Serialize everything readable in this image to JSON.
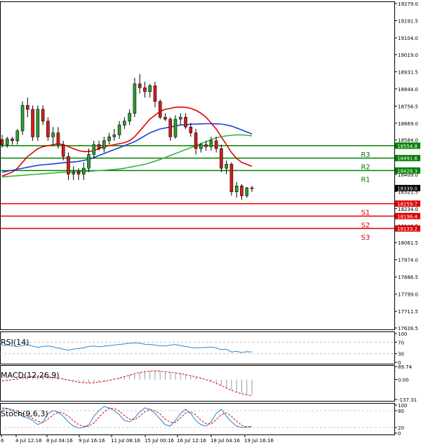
{
  "chart_data": {
    "type": "candlestick",
    "price_axis": {
      "ticks": [
        "19279.0",
        "19191.5",
        "19104.0",
        "19019.0",
        "18931.5",
        "18844.0",
        "18756.5",
        "18669.0",
        "18584.0",
        "18496.0",
        "18409.0",
        "18321.5",
        "18234.0",
        "18146.5",
        "18061.5",
        "17974.0",
        "17886.5",
        "17799.0",
        "17711.5",
        "17626.5"
      ],
      "range": [
        17626.5,
        19279.0
      ],
      "current_price": "18339.0"
    },
    "levels": [
      {
        "label": "R3",
        "value": 18554.8,
        "value_text": "18554.8",
        "color": "#008000"
      },
      {
        "label": "R2",
        "value": 18491.6,
        "value_text": "18491.6",
        "color": "#008000"
      },
      {
        "label": "R1",
        "value": 18428.3,
        "value_text": "18428.3",
        "color": "#008000"
      },
      {
        "label": "S1",
        "value": 18259.7,
        "value_text": "18259.7",
        "color": "#e00000"
      },
      {
        "label": "S2",
        "value": 18196.4,
        "value_text": "18196.4",
        "color": "#e00000"
      },
      {
        "label": "S3",
        "value": 18133.2,
        "value_text": "18133.2",
        "color": "#e00000"
      }
    ],
    "candles": [
      {
        "o": 18585,
        "h": 18610,
        "l": 18545,
        "c": 18560
      },
      {
        "o": 18560,
        "h": 18600,
        "l": 18545,
        "c": 18590
      },
      {
        "o": 18590,
        "h": 18600,
        "l": 18560,
        "c": 18580
      },
      {
        "o": 18580,
        "h": 18640,
        "l": 18560,
        "c": 18630
      },
      {
        "o": 18630,
        "h": 18780,
        "l": 18610,
        "c": 18760
      },
      {
        "o": 18760,
        "h": 18800,
        "l": 18700,
        "c": 18740
      },
      {
        "o": 18740,
        "h": 18760,
        "l": 18580,
        "c": 18600
      },
      {
        "o": 18600,
        "h": 18760,
        "l": 18580,
        "c": 18740
      },
      {
        "o": 18740,
        "h": 18760,
        "l": 18660,
        "c": 18680
      },
      {
        "o": 18680,
        "h": 18700,
        "l": 18580,
        "c": 18600
      },
      {
        "o": 18600,
        "h": 18650,
        "l": 18560,
        "c": 18620
      },
      {
        "o": 18620,
        "h": 18650,
        "l": 18540,
        "c": 18560
      },
      {
        "o": 18560,
        "h": 18580,
        "l": 18480,
        "c": 18500
      },
      {
        "o": 18500,
        "h": 18520,
        "l": 18380,
        "c": 18410
      },
      {
        "o": 18410,
        "h": 18450,
        "l": 18380,
        "c": 18420
      },
      {
        "o": 18420,
        "h": 18440,
        "l": 18380,
        "c": 18410
      },
      {
        "o": 18410,
        "h": 18470,
        "l": 18380,
        "c": 18440
      },
      {
        "o": 18440,
        "h": 18540,
        "l": 18420,
        "c": 18510
      },
      {
        "o": 18510,
        "h": 18580,
        "l": 18490,
        "c": 18560
      },
      {
        "o": 18560,
        "h": 18580,
        "l": 18530,
        "c": 18540
      },
      {
        "o": 18540,
        "h": 18600,
        "l": 18520,
        "c": 18580
      },
      {
        "o": 18580,
        "h": 18620,
        "l": 18560,
        "c": 18600
      },
      {
        "o": 18600,
        "h": 18640,
        "l": 18580,
        "c": 18610
      },
      {
        "o": 18610,
        "h": 18680,
        "l": 18590,
        "c": 18660
      },
      {
        "o": 18660,
        "h": 18700,
        "l": 18640,
        "c": 18680
      },
      {
        "o": 18680,
        "h": 18740,
        "l": 18660,
        "c": 18720
      },
      {
        "o": 18720,
        "h": 18900,
        "l": 18700,
        "c": 18870
      },
      {
        "o": 18870,
        "h": 18920,
        "l": 18820,
        "c": 18850
      },
      {
        "o": 18850,
        "h": 18880,
        "l": 18800,
        "c": 18830
      },
      {
        "o": 18830,
        "h": 18870,
        "l": 18800,
        "c": 18860
      },
      {
        "o": 18860,
        "h": 18880,
        "l": 18750,
        "c": 18780
      },
      {
        "o": 18780,
        "h": 18790,
        "l": 18690,
        "c": 18700
      },
      {
        "o": 18700,
        "h": 18720,
        "l": 18680,
        "c": 18690
      },
      {
        "o": 18690,
        "h": 18700,
        "l": 18580,
        "c": 18600
      },
      {
        "o": 18600,
        "h": 18710,
        "l": 18590,
        "c": 18690
      },
      {
        "o": 18690,
        "h": 18720,
        "l": 18660,
        "c": 18700
      },
      {
        "o": 18700,
        "h": 18720,
        "l": 18640,
        "c": 18650
      },
      {
        "o": 18650,
        "h": 18670,
        "l": 18600,
        "c": 18620
      },
      {
        "o": 18620,
        "h": 18640,
        "l": 18510,
        "c": 18540
      },
      {
        "o": 18540,
        "h": 18570,
        "l": 18520,
        "c": 18560
      },
      {
        "o": 18560,
        "h": 18580,
        "l": 18530,
        "c": 18550
      },
      {
        "o": 18550,
        "h": 18600,
        "l": 18530,
        "c": 18580
      },
      {
        "o": 18580,
        "h": 18600,
        "l": 18520,
        "c": 18540
      },
      {
        "o": 18540,
        "h": 18560,
        "l": 18420,
        "c": 18440
      },
      {
        "o": 18440,
        "h": 18480,
        "l": 18410,
        "c": 18460
      },
      {
        "o": 18460,
        "h": 18470,
        "l": 18300,
        "c": 18320
      },
      {
        "o": 18320,
        "h": 18370,
        "l": 18290,
        "c": 18350
      },
      {
        "o": 18350,
        "h": 18360,
        "l": 18280,
        "c": 18300
      },
      {
        "o": 18300,
        "h": 18345,
        "l": 18290,
        "c": 18340
      },
      {
        "o": 18340,
        "h": 18350,
        "l": 18320,
        "c": 18339
      }
    ],
    "moving_averages": [
      {
        "color": "#e00000",
        "values": [
          18400,
          18410,
          18420,
          18440,
          18470,
          18500,
          18520,
          18540,
          18550,
          18555,
          18560,
          18565,
          18560,
          18550,
          18540,
          18530,
          18525,
          18525,
          18530,
          18540,
          18550,
          18555,
          18560,
          18565,
          18570,
          18580,
          18600,
          18630,
          18660,
          18690,
          18710,
          18730,
          18740,
          18745,
          18750,
          18752,
          18750,
          18745,
          18735,
          18720,
          18700,
          18670,
          18640,
          18600,
          18560,
          18520,
          18490,
          18470,
          18460,
          18450
        ]
      },
      {
        "color": "#1a3fd6",
        "values": [
          18420,
          18425,
          18430,
          18435,
          18440,
          18445,
          18450,
          18455,
          18458,
          18460,
          18462,
          18465,
          18468,
          18470,
          18472,
          18475,
          18480,
          18485,
          18495,
          18505,
          18515,
          18525,
          18535,
          18545,
          18555,
          18565,
          18575,
          18590,
          18605,
          18620,
          18630,
          18640,
          18645,
          18650,
          18655,
          18660,
          18662,
          18664,
          18665,
          18666,
          18667,
          18667,
          18666,
          18665,
          18660,
          18655,
          18645,
          18635,
          18625,
          18615
        ]
      },
      {
        "color": "#3cb043",
        "values": [
          18395,
          18398,
          18400,
          18402,
          18404,
          18406,
          18408,
          18410,
          18412,
          18414,
          18416,
          18418,
          18420,
          18421,
          18422,
          18423,
          18424,
          18425,
          18426,
          18428,
          18430,
          18432,
          18434,
          18436,
          18440,
          18445,
          18450,
          18455,
          18460,
          18468,
          18476,
          18485,
          18495,
          18505,
          18515,
          18525,
          18535,
          18545,
          18555,
          18565,
          18575,
          18585,
          18595,
          18600,
          18605,
          18608,
          18610,
          18610,
          18608,
          18605
        ]
      }
    ],
    "x_axis_labels": [
      "6",
      "4 Jul 12:16",
      "8 Jul 04:16",
      "9 Jul 16:16",
      "11 Jul 08:16",
      "15 Jul 00:16",
      "16 Jul 12:16",
      "18 Jul 04:16",
      "19 Jul 16:16"
    ],
    "indicators": [
      {
        "name": "RSI(14)",
        "ticks": [
          "100",
          "70",
          "30",
          "0"
        ],
        "range": [
          0,
          100
        ],
        "color": "#1f8ad6",
        "values": [
          58,
          60,
          57,
          55,
          58,
          62,
          56,
          52,
          55,
          57,
          54,
          50,
          46,
          42,
          46,
          48,
          50,
          55,
          57,
          54,
          56,
          58,
          60,
          62,
          64,
          66,
          68,
          66,
          63,
          62,
          60,
          58,
          57,
          60,
          62,
          58,
          55,
          52,
          50,
          51,
          52,
          53,
          50,
          44,
          46,
          36,
          38,
          34,
          37,
          36
        ]
      },
      {
        "name": "MACD(12,26,9)",
        "ticks": [
          "89.74",
          "0.00",
          "-137.31"
        ],
        "range": [
          -137.31,
          89.74
        ],
        "color": "#e00000",
        "values": [
          -10,
          -6,
          -2,
          4,
          12,
          18,
          22,
          24,
          22,
          18,
          14,
          10,
          4,
          -4,
          -12,
          -18,
          -22,
          -24,
          -22,
          -18,
          -12,
          -6,
          2,
          10,
          20,
          30,
          40,
          48,
          54,
          58,
          60,
          58,
          54,
          50,
          46,
          40,
          34,
          26,
          18,
          10,
          0,
          -12,
          -26,
          -42,
          -58,
          -74,
          -88,
          -98,
          -106,
          -112
        ],
        "histogram": [
          -8,
          -4,
          0,
          5,
          14,
          20,
          24,
          26,
          24,
          20,
          16,
          12,
          6,
          -2,
          -10,
          -16,
          -20,
          -22,
          -20,
          -16,
          -10,
          -4,
          4,
          12,
          22,
          32,
          42,
          50,
          56,
          60,
          62,
          60,
          56,
          52,
          48,
          42,
          36,
          28,
          20,
          12,
          2,
          -10,
          -24,
          -40,
          -56,
          -72,
          -86,
          -96,
          -104,
          -110
        ]
      },
      {
        "name": "Stoch(9,6,3)",
        "ticks": [
          "100",
          "80",
          "20",
          "0"
        ],
        "range": [
          0,
          100
        ],
        "color": "#1f8ad6",
        "signal_color": "#e00000",
        "values": [
          90,
          88,
          80,
          70,
          60,
          55,
          45,
          30,
          40,
          70,
          80,
          75,
          60,
          40,
          25,
          18,
          20,
          30,
          60,
          80,
          95,
          90,
          80,
          65,
          45,
          40,
          55,
          75,
          90,
          85,
          70,
          50,
          30,
          25,
          45,
          70,
          85,
          70,
          45,
          30,
          25,
          40,
          70,
          85,
          60,
          40,
          25,
          20,
          22,
          24
        ],
        "signal": [
          85,
          86,
          84,
          78,
          70,
          62,
          52,
          42,
          38,
          50,
          65,
          74,
          72,
          60,
          44,
          30,
          24,
          24,
          36,
          56,
          76,
          88,
          88,
          78,
          62,
          50,
          48,
          60,
          76,
          84,
          80,
          68,
          50,
          38,
          38,
          54,
          72,
          76,
          64,
          46,
          34,
          32,
          48,
          66,
          72,
          60,
          42,
          28,
          22,
          22
        ]
      }
    ]
  }
}
